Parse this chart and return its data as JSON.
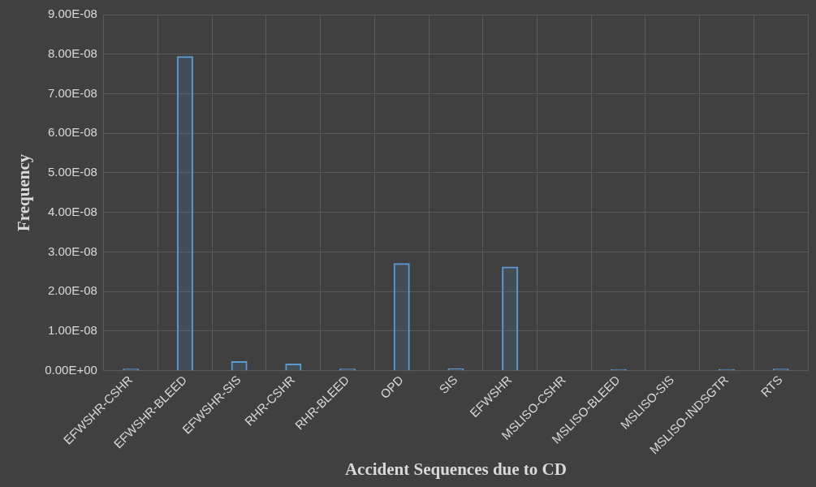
{
  "chart_data": {
    "type": "bar",
    "xlabel": "Accident Sequences due to CD",
    "ylabel": "Frequency",
    "categories": [
      "EFWSHR-CSHR",
      "EFWSHR-BLEED",
      "EFWSHR-SIS",
      "RHR-CSHR",
      "RHR-BLEED",
      "OPD",
      "SIS",
      "EFWSHR",
      "MSLISO-CSHR",
      "MSLISO-BLEED",
      "MSLISO-SIS",
      "MSLISO-INDSGTR",
      "RTS"
    ],
    "values": [
      5e-10,
      7.95e-08,
      2.4e-09,
      1.8e-09,
      5e-10,
      2.72e-08,
      6e-10,
      2.63e-08,
      0,
      4e-10,
      0,
      4e-10,
      5e-10
    ],
    "color": "#5b9bd5",
    "ylim": [
      0,
      9e-08
    ],
    "yticks": [
      {
        "value": 0,
        "label": "0.00E+00"
      },
      {
        "value": 1e-08,
        "label": "1.00E-08"
      },
      {
        "value": 2e-08,
        "label": "2.00E-08"
      },
      {
        "value": 3e-08,
        "label": "3.00E-08"
      },
      {
        "value": 4e-08,
        "label": "4.00E-08"
      },
      {
        "value": 5e-08,
        "label": "5.00E-08"
      },
      {
        "value": 6e-08,
        "label": "6.00E-08"
      },
      {
        "value": 7e-08,
        "label": "7.00E-08"
      },
      {
        "value": 8e-08,
        "label": "8.00E-08"
      },
      {
        "value": 9e-08,
        "label": "9.00E-08"
      }
    ],
    "grid": true,
    "legend": false
  }
}
